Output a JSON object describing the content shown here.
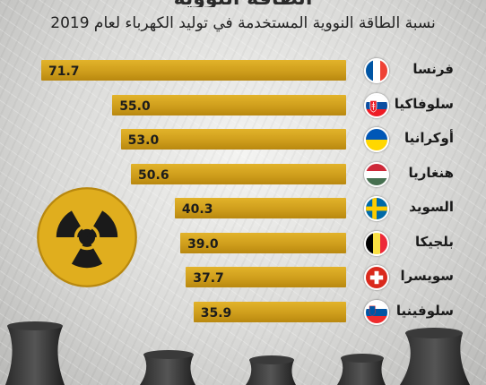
{
  "title": "الطاقة النووية",
  "subtitle": "نسبة الطاقة النووية المستخدمة في توليد الكهرباء لعام 2019",
  "chart_data": {
    "type": "bar",
    "orientation": "horizontal",
    "categories": [
      "فرنسا",
      "سلوفاكيا",
      "أوكرانيا",
      "هنغاريا",
      "السويد",
      "بلجيكا",
      "سويسرا",
      "سلوفينيا"
    ],
    "values": [
      71.7,
      55.0,
      53.0,
      50.6,
      40.3,
      39.0,
      37.7,
      35.9
    ],
    "value_labels": [
      "71.7",
      "55.0",
      "53.0",
      "50.6",
      "40.3",
      "39.0",
      "37.7",
      "35.9"
    ],
    "bar_color": "#d4a420",
    "flag_icons": [
      "france-flag-icon",
      "slovakia-flag-icon",
      "ukraine-flag-icon",
      "hungary-flag-icon",
      "sweden-flag-icon",
      "belgium-flag-icon",
      "switzerland-flag-icon",
      "slovenia-flag-icon"
    ]
  },
  "decorations": {
    "hazard_icon": "radiation-hazard-icon",
    "towers_icon": "cooling-towers-icon"
  }
}
